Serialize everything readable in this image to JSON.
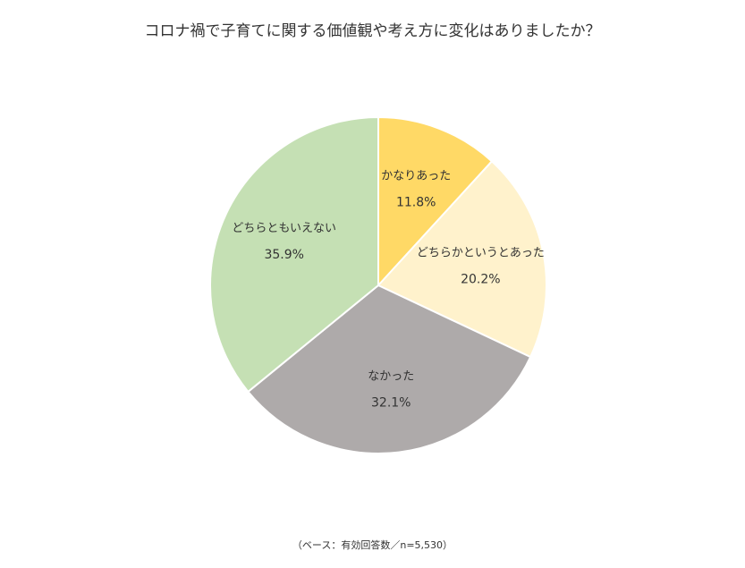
{
  "chart_data": {
    "type": "pie",
    "title": "コロナ禍で子育てに関する価値観や考え方に変化はありましたか？",
    "start_angle_deg": 0,
    "direction": "clockwise",
    "slices": [
      {
        "label": "かなりあった",
        "value": 11.8,
        "display": "11.8%",
        "color": "#FFD966"
      },
      {
        "label": "どちらかというとあった",
        "value": 20.2,
        "display": "20.2%",
        "color": "#FFF2CC"
      },
      {
        "label": "なかった",
        "value": 32.1,
        "display": "32.1%",
        "color": "#AEAAAA"
      },
      {
        "label": "どちらともいえない",
        "value": 35.9,
        "display": "35.9%",
        "color": "#C5E0B4"
      }
    ],
    "footnote": "（ベース：有効回答数／n=5,530）"
  }
}
